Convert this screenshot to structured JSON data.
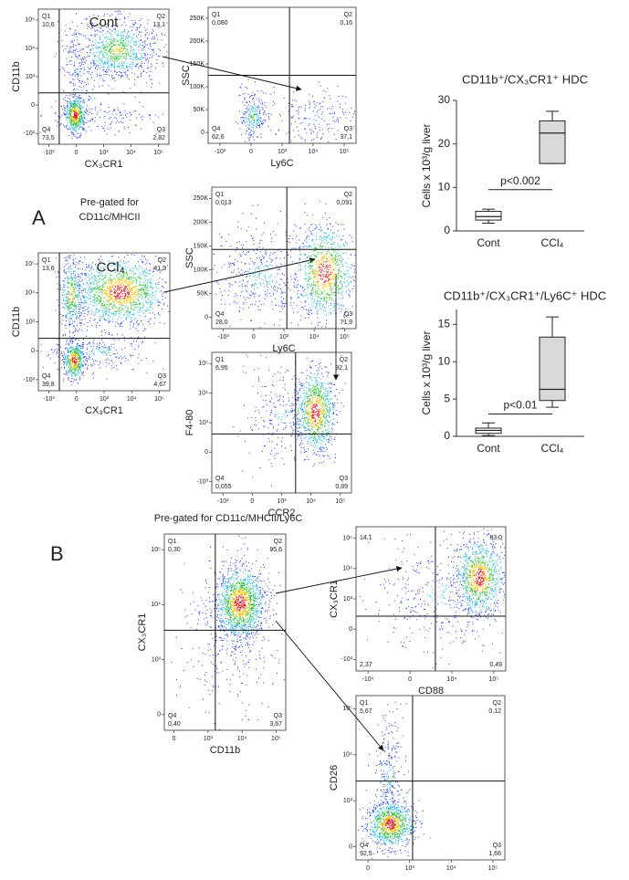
{
  "panel_labels": [
    "A",
    "B"
  ],
  "annotations": [
    {
      "lines": [
        "Pre-gated for",
        "CD11c/MHCII"
      ]
    },
    {
      "lines": [
        "Pre-gated for CD11c/MHCII/Ly6C"
      ]
    }
  ],
  "flow_plots": [
    {
      "title": "Cont",
      "x_label": "CX₃CR1",
      "y_label": "CD11b",
      "x_ticks": [
        "-10³",
        "0",
        "10³",
        "10⁴",
        "10⁵"
      ],
      "y_ticks": [
        "-10³",
        "0",
        "10³",
        "10⁴",
        "10⁵"
      ],
      "quadrants": [
        {
          "name": "Q1",
          "value": "10,6"
        },
        {
          "name": "Q2",
          "value": "13,1"
        },
        {
          "name": "Q4",
          "value": "73,5"
        },
        {
          "name": "Q3",
          "value": "2,82"
        }
      ]
    },
    {
      "x_label": "Ly6C",
      "y_label": "SSC",
      "x_ticks": [
        "-10³",
        "0",
        "10³",
        "10⁴",
        "10⁵"
      ],
      "y_ticks": [
        "0",
        "50K",
        "100K",
        "150K",
        "200K",
        "250K"
      ],
      "quadrants": [
        {
          "name": "Q1",
          "value": "0,080"
        },
        {
          "name": "Q2",
          "value": "0,16"
        },
        {
          "name": "Q4",
          "value": "62,6"
        },
        {
          "name": "Q3",
          "value": "37,1"
        }
      ]
    },
    {
      "title": "CCl₄",
      "x_label": "CX₃CR1",
      "y_label": "CD11b",
      "x_ticks": [
        "-10³",
        "0",
        "10³",
        "10⁴",
        "10⁵"
      ],
      "y_ticks": [
        "-10³",
        "0",
        "10³",
        "10⁴",
        "10⁵"
      ],
      "quadrants": [
        {
          "name": "Q1",
          "value": "13,6"
        },
        {
          "name": "Q2",
          "value": "41,9"
        },
        {
          "name": "Q4",
          "value": "39,8"
        },
        {
          "name": "Q3",
          "value": "4,67"
        }
      ]
    },
    {
      "x_label": "Ly6C",
      "y_label": "SSC",
      "x_ticks": [
        "-10³",
        "0",
        "10³",
        "10⁴",
        "10⁵"
      ],
      "y_ticks": [
        "0",
        "50K",
        "100K",
        "150K",
        "200K",
        "250K"
      ],
      "quadrants": [
        {
          "name": "Q1",
          "value": "0,013"
        },
        {
          "name": "Q2",
          "value": "0,091"
        },
        {
          "name": "Q4",
          "value": "28,0"
        },
        {
          "name": "Q3",
          "value": "71,9"
        }
      ]
    },
    {
      "x_label": "CCR2",
      "y_label": "F4-80",
      "x_ticks": [
        "-10³",
        "0",
        "10³",
        "10⁴",
        "10⁵"
      ],
      "y_ticks": [
        "-10³",
        "0",
        "10³",
        "10⁴",
        "10⁵"
      ],
      "quadrants": [
        {
          "name": "Q1",
          "value": "6,95"
        },
        {
          "name": "Q2",
          "value": "92,1"
        },
        {
          "name": "Q4",
          "value": "0,055"
        },
        {
          "name": "Q3",
          "value": "0,89"
        }
      ]
    },
    {
      "x_label": "CD11b",
      "y_label": "CX₃CR1",
      "x_ticks": [
        "0",
        "10³",
        "10⁴",
        "10⁵"
      ],
      "y_ticks": [
        "0",
        "10³",
        "10⁴",
        "10⁵"
      ],
      "quadrants": [
        {
          "name": "Q1",
          "value": "0,30"
        },
        {
          "name": "Q2",
          "value": "95,6"
        },
        {
          "name": "Q4",
          "value": "0,40"
        },
        {
          "name": "Q3",
          "value": "3,67"
        }
      ]
    },
    {
      "x_label": "CD88",
      "y_label": "CX₃CR1",
      "x_ticks": [
        "-10⁴",
        "0",
        "10⁴",
        "10⁵"
      ],
      "y_ticks": [
        "-10³",
        "0",
        "10³",
        "10⁴",
        "10⁵"
      ],
      "quadrants": [
        {
          "value": "14,1"
        },
        {
          "value": "83,0"
        },
        {
          "value": "2,37"
        },
        {
          "value": "0,49"
        }
      ]
    },
    {
      "x_label": "CD35",
      "y_label": "CD26",
      "x_ticks": [
        "0",
        "10³",
        "10⁴",
        "10⁵"
      ],
      "y_ticks": [
        "0",
        "10³",
        "10⁴",
        "10⁵"
      ],
      "quadrants": [
        {
          "name": "Q1",
          "value": "5,67"
        },
        {
          "name": "Q2",
          "value": "0,12"
        },
        {
          "name": "Q4",
          "value": "92,5"
        },
        {
          "name": "Q3",
          "value": "1,66"
        }
      ]
    }
  ],
  "box_charts": [
    {
      "type": "box",
      "title": "CD11b⁺/CX₃CR1⁺ HDC",
      "y_label": "Cells x 10³/g liver",
      "categories": [
        "Cont",
        "CCl₄"
      ],
      "color": "#d9d9d9",
      "boxes": [
        {
          "min": 1.8,
          "q1": 2.5,
          "median": 3.3,
          "q3": 4.5,
          "max": 5.0
        },
        {
          "min": 15.5,
          "q1": 15.5,
          "median": 22.5,
          "q3": 25.3,
          "max": 27.5
        }
      ],
      "ylim": [
        0,
        30
      ],
      "yticks": [
        0,
        10,
        20,
        30
      ],
      "annotation": "p<0.002"
    },
    {
      "type": "box",
      "title": "CD11b⁺/CX₃CR1⁺/Ly6C⁺ HDC",
      "y_label": "Cells x 10³/g liver",
      "categories": [
        "Cont",
        "CCl₄"
      ],
      "color": "#d9d9d9",
      "boxes": [
        {
          "min": 0.1,
          "q1": 0.4,
          "median": 0.8,
          "q3": 1.1,
          "max": 1.8
        },
        {
          "min": 3.9,
          "q1": 4.8,
          "median": 6.3,
          "q3": 13.3,
          "max": 16.0
        }
      ],
      "ylim": [
        0,
        17
      ],
      "yticks": [
        0,
        5,
        10,
        15
      ],
      "annotation": "p<0.01"
    }
  ]
}
